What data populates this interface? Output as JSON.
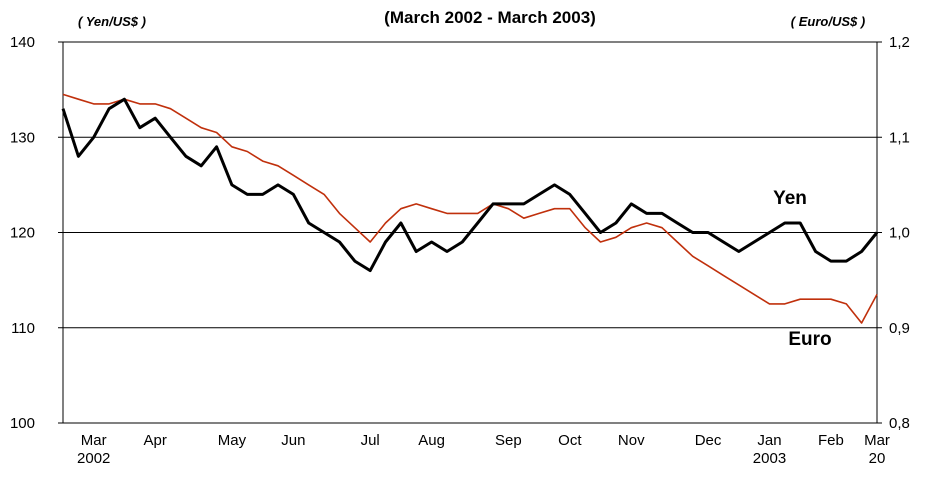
{
  "chart_data": {
    "type": "line",
    "title": "(March 2002 - March 2003)",
    "y_label": "( Yen/US$ )",
    "y2_label": "( Euro/US$ )",
    "annotations": [
      {
        "text": "Yen",
        "series": 0
      },
      {
        "text": "Euro",
        "series": 1
      }
    ],
    "categories": [
      null,
      null,
      [
        "Mar",
        "2002"
      ],
      null,
      null,
      null,
      [
        "Apr"
      ],
      null,
      null,
      null,
      null,
      [
        "May"
      ],
      null,
      null,
      null,
      [
        "Jun"
      ],
      null,
      null,
      null,
      null,
      [
        "Jul"
      ],
      null,
      null,
      null,
      [
        "Aug"
      ],
      null,
      null,
      null,
      null,
      [
        "Sep"
      ],
      null,
      null,
      null,
      [
        "Oct"
      ],
      null,
      null,
      null,
      [
        "Nov"
      ],
      null,
      null,
      null,
      null,
      [
        "Dec"
      ],
      null,
      null,
      null,
      [
        "Jan",
        "2003"
      ],
      null,
      null,
      null,
      [
        "Feb"
      ],
      null,
      null,
      [
        "Mar",
        "20"
      ]
    ],
    "series": [
      {
        "name": "Yen",
        "color": "#000000",
        "values": [
          133,
          128,
          130,
          133,
          134,
          131,
          132,
          130,
          128,
          127,
          129,
          125,
          124,
          124,
          125,
          124,
          121,
          120,
          119,
          117,
          116,
          119,
          121,
          118,
          119,
          118,
          119,
          121,
          123,
          123,
          123,
          124,
          125,
          124,
          122,
          120,
          121,
          123,
          122,
          122,
          121,
          120,
          120,
          119,
          118,
          119,
          120,
          121,
          121,
          118,
          117,
          117,
          118,
          120
        ]
      },
      {
        "name": "Euro",
        "color": "#c0300c",
        "axis": "y2",
        "values": [
          1.145,
          1.14,
          1.135,
          1.135,
          1.14,
          1.135,
          1.135,
          1.13,
          1.12,
          1.11,
          1.105,
          1.09,
          1.085,
          1.075,
          1.07,
          1.06,
          1.05,
          1.04,
          1.02,
          1.005,
          0.99,
          1.01,
          1.025,
          1.03,
          1.025,
          1.02,
          1.02,
          1.02,
          1.03,
          1.025,
          1.015,
          1.02,
          1.025,
          1.025,
          1.005,
          0.99,
          0.995,
          1.005,
          1.01,
          1.005,
          0.99,
          0.975,
          0.965,
          0.955,
          0.945,
          0.935,
          0.925,
          0.925,
          0.93,
          0.93,
          0.93,
          0.925,
          0.905,
          0.935
        ]
      }
    ],
    "ylim": [
      100,
      140
    ],
    "yticks": [
      100,
      110,
      120,
      130,
      140
    ],
    "y2lim": [
      0.8,
      1.2
    ],
    "y2ticks": [
      {
        "value": 0.8,
        "label": "0,8"
      },
      {
        "value": 0.9,
        "label": "0,9"
      },
      {
        "value": 1.0,
        "label": "1,0"
      },
      {
        "value": 1.1,
        "label": "1,1"
      },
      {
        "value": 1.2,
        "label": "1,2"
      }
    ],
    "grid": true
  }
}
